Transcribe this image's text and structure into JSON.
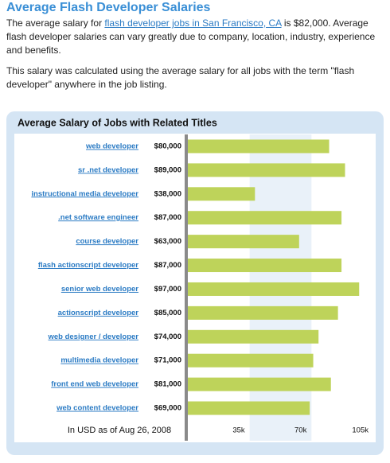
{
  "header": {
    "title": "Average Flash Developer Salaries",
    "para1": {
      "before": "The average salary for ",
      "link": "flash developer jobs in San Francisco, CA",
      "after": " is $82,000. Average flash developer salaries can vary greatly due to company, location, industry, experience and benefits."
    },
    "para2": "This salary was calculated using the average salary for all jobs with the term \"flash developer\" anywhere in the job listing."
  },
  "chart_data": {
    "type": "bar",
    "orientation": "horizontal",
    "title": "Average Salary of Jobs with Related Titles",
    "categories": [
      "web developer",
      "sr .net developer",
      "instructional media developer",
      ".net software engineer",
      "course developer",
      "flash actionscript developer",
      "senior web developer",
      "actionscript developer",
      "web designer / developer",
      "multimedia developer",
      "front end web developer",
      "web content developer"
    ],
    "values": [
      80000,
      89000,
      38000,
      87000,
      63000,
      87000,
      97000,
      85000,
      74000,
      71000,
      81000,
      69000
    ],
    "value_labels": [
      "$80,000",
      "$89,000",
      "$38,000",
      "$87,000",
      "$63,000",
      "$87,000",
      "$97,000",
      "$85,000",
      "$74,000",
      "$71,000",
      "$81,000",
      "$69,000"
    ],
    "color": "#bed35a",
    "xlim": [
      0,
      105000
    ],
    "xticks": [
      {
        "value": 35000,
        "label": "35k"
      },
      {
        "value": 70000,
        "label": "70k"
      },
      {
        "value": 105000,
        "label": "105k"
      }
    ],
    "note": "In USD as of Aug 26, 2008"
  }
}
